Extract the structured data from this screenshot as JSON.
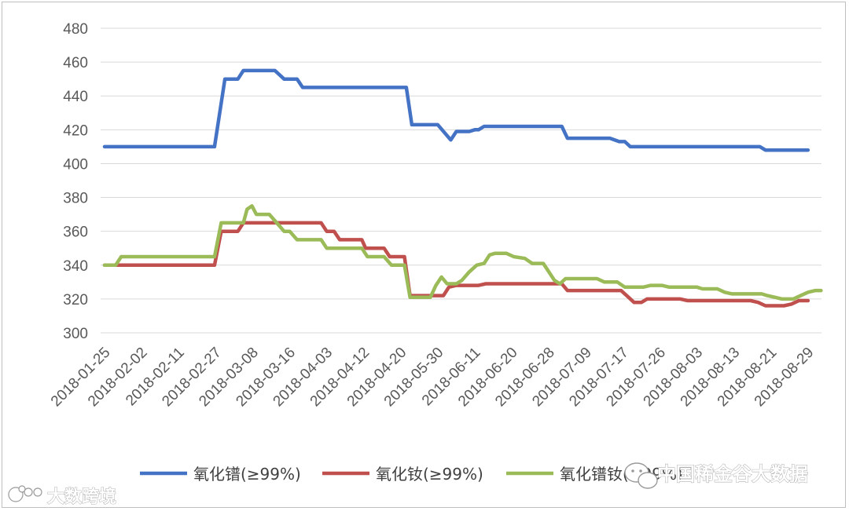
{
  "chart_data": {
    "type": "line",
    "title": "",
    "xlabel": "",
    "ylabel": "",
    "ylim": [
      300,
      480
    ],
    "yticks": [
      300,
      320,
      340,
      360,
      380,
      400,
      420,
      440,
      460,
      480
    ],
    "grid": true,
    "legend_position": "bottom",
    "x_tick_labels": [
      "2018-01-25",
      "2018-02-02",
      "2018-02-11",
      "2018-02-27",
      "2018-03-08",
      "2018-03-16",
      "2018-04-03",
      "2018-04-12",
      "2018-04-20",
      "2018-05-30",
      "2018-06-11",
      "2018-06-20",
      "2018-06-28",
      "2018-07-09",
      "2018-07-17",
      "2018-07-26",
      "2018-08-03",
      "2018-08-13",
      "2018-08-21",
      "2018-08-29"
    ],
    "series": [
      {
        "name": "氧化镨(≥99%)",
        "color": "#4472c4",
        "points": [
          [
            0,
            410
          ],
          [
            2.97,
            410
          ],
          [
            3.25,
            450
          ],
          [
            3.6,
            450
          ],
          [
            3.75,
            455
          ],
          [
            4.6,
            455
          ],
          [
            4.85,
            450
          ],
          [
            5.2,
            450
          ],
          [
            5.35,
            445
          ],
          [
            8.15,
            445
          ],
          [
            8.3,
            423
          ],
          [
            9.0,
            423
          ],
          [
            9.35,
            414
          ],
          [
            9.5,
            419
          ],
          [
            9.85,
            419
          ],
          [
            10.0,
            420
          ],
          [
            10.1,
            420
          ],
          [
            10.25,
            422
          ],
          [
            12.35,
            422
          ],
          [
            12.5,
            415
          ],
          [
            13.65,
            415
          ],
          [
            13.9,
            413
          ],
          [
            14.05,
            413
          ],
          [
            14.2,
            410
          ],
          [
            17.7,
            410
          ],
          [
            17.85,
            408
          ],
          [
            19.0,
            408
          ]
        ]
      },
      {
        "name": "氧化钕(≥99%)",
        "color": "#c0504d",
        "points": [
          [
            0,
            340
          ],
          [
            2.97,
            340
          ],
          [
            3.15,
            360
          ],
          [
            3.6,
            360
          ],
          [
            3.75,
            365
          ],
          [
            5.85,
            365
          ],
          [
            6.0,
            360
          ],
          [
            6.2,
            360
          ],
          [
            6.35,
            355
          ],
          [
            6.95,
            355
          ],
          [
            7.05,
            350
          ],
          [
            7.55,
            350
          ],
          [
            7.7,
            345
          ],
          [
            8.1,
            345
          ],
          [
            8.25,
            322
          ],
          [
            8.95,
            322
          ],
          [
            9.15,
            322
          ],
          [
            9.3,
            327
          ],
          [
            9.5,
            328
          ],
          [
            10.1,
            328
          ],
          [
            10.3,
            329
          ],
          [
            12.35,
            329
          ],
          [
            12.5,
            325
          ],
          [
            13.95,
            325
          ],
          [
            14.15,
            321
          ],
          [
            14.3,
            318
          ],
          [
            14.5,
            318
          ],
          [
            14.65,
            320
          ],
          [
            15.55,
            320
          ],
          [
            15.75,
            319
          ],
          [
            17.45,
            319
          ],
          [
            17.65,
            318
          ],
          [
            17.85,
            316
          ],
          [
            18.35,
            316
          ],
          [
            18.55,
            317
          ],
          [
            18.75,
            319
          ],
          [
            19.0,
            319
          ]
        ]
      },
      {
        "name": "氧化镨钕(≥99%)",
        "color": "#9bbb59",
        "points": [
          [
            0,
            340
          ],
          [
            0.3,
            340
          ],
          [
            0.45,
            345
          ],
          [
            2.97,
            345
          ],
          [
            3.15,
            365
          ],
          [
            3.6,
            365
          ],
          [
            3.75,
            365
          ],
          [
            3.85,
            373
          ],
          [
            3.98,
            375
          ],
          [
            4.1,
            370
          ],
          [
            4.45,
            370
          ],
          [
            4.65,
            365
          ],
          [
            4.85,
            360
          ],
          [
            5.0,
            360
          ],
          [
            5.2,
            355
          ],
          [
            5.85,
            355
          ],
          [
            6.0,
            350
          ],
          [
            6.95,
            350
          ],
          [
            7.1,
            345
          ],
          [
            7.55,
            345
          ],
          [
            7.75,
            340
          ],
          [
            8.1,
            340
          ],
          [
            8.25,
            321
          ],
          [
            8.8,
            321
          ],
          [
            8.95,
            328
          ],
          [
            9.1,
            333
          ],
          [
            9.25,
            329
          ],
          [
            9.5,
            329
          ],
          [
            9.65,
            331
          ],
          [
            9.85,
            336
          ],
          [
            10.05,
            340
          ],
          [
            10.25,
            341
          ],
          [
            10.4,
            346
          ],
          [
            10.55,
            347
          ],
          [
            10.85,
            347
          ],
          [
            11.05,
            345
          ],
          [
            11.35,
            344
          ],
          [
            11.55,
            341
          ],
          [
            11.85,
            341
          ],
          [
            12.0,
            336
          ],
          [
            12.15,
            331
          ],
          [
            12.3,
            329
          ],
          [
            12.45,
            332
          ],
          [
            13.3,
            332
          ],
          [
            13.5,
            330
          ],
          [
            13.85,
            330
          ],
          [
            14.05,
            327
          ],
          [
            14.55,
            327
          ],
          [
            14.75,
            328
          ],
          [
            15.05,
            328
          ],
          [
            15.25,
            327
          ],
          [
            16.0,
            327
          ],
          [
            16.15,
            326
          ],
          [
            16.55,
            326
          ],
          [
            16.75,
            324
          ],
          [
            16.95,
            323
          ],
          [
            17.75,
            323
          ],
          [
            17.9,
            322
          ],
          [
            18.1,
            321
          ],
          [
            18.3,
            320
          ],
          [
            18.6,
            320
          ],
          [
            18.8,
            322
          ],
          [
            19.0,
            324
          ],
          [
            19.2,
            325
          ],
          [
            19.35,
            325
          ]
        ]
      }
    ]
  },
  "watermarks": {
    "left": "大数跨境",
    "right": "中国稀金谷大数据"
  }
}
